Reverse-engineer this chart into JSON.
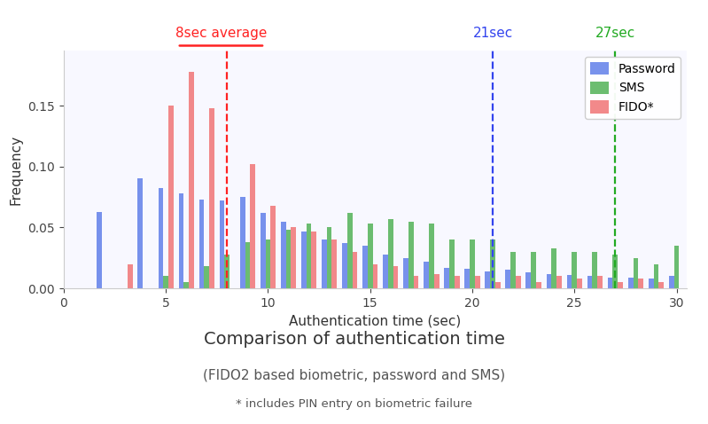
{
  "title": "Comparison of authentication time",
  "subtitle1": "(FIDO2 based biometric, password and SMS)",
  "subtitle2": "* includes PIN entry on biometric failure",
  "xlabel": "Authentication time (sec)",
  "ylabel": "Frequency",
  "xlim": [
    1.5,
    30.5
  ],
  "ylim": [
    0,
    0.195
  ],
  "yticks": [
    0.0,
    0.05,
    0.1,
    0.15
  ],
  "xticks": [
    0,
    5,
    10,
    15,
    20,
    25,
    30
  ],
  "bar_width": 0.25,
  "colors": {
    "password": "#5b7be8",
    "sms": "#4caf50",
    "fido": "#f07070"
  },
  "vline_fido": {
    "x": 8,
    "color": "#ff2222",
    "label": "8sec average"
  },
  "vline_password": {
    "x": 21,
    "color": "#3344ee",
    "label": "21sec"
  },
  "vline_sms": {
    "x": 27,
    "color": "#22aa22",
    "label": "27sec"
  },
  "bins": [
    2,
    3,
    4,
    5,
    6,
    7,
    8,
    9,
    10,
    11,
    12,
    13,
    14,
    15,
    16,
    17,
    18,
    19,
    20,
    21,
    22,
    23,
    24,
    25,
    26,
    27,
    28,
    29,
    30
  ],
  "password_freq": [
    0.063,
    0.0,
    0.09,
    0.082,
    0.078,
    0.073,
    0.072,
    0.075,
    0.062,
    0.055,
    0.047,
    0.04,
    0.037,
    0.035,
    0.028,
    0.025,
    0.022,
    0.017,
    0.016,
    0.014,
    0.015,
    0.013,
    0.012,
    0.011,
    0.01,
    0.009,
    0.009,
    0.008,
    0.01
  ],
  "sms_freq": [
    0.0,
    0.0,
    0.0,
    0.01,
    0.005,
    0.018,
    0.028,
    0.038,
    0.04,
    0.048,
    0.053,
    0.05,
    0.062,
    0.053,
    0.057,
    0.055,
    0.053,
    0.04,
    0.04,
    0.04,
    0.03,
    0.03,
    0.033,
    0.03,
    0.03,
    0.028,
    0.025,
    0.02,
    0.035
  ],
  "fido_freq": [
    0.0,
    0.02,
    0.0,
    0.15,
    0.178,
    0.148,
    0.0,
    0.102,
    0.068,
    0.05,
    0.047,
    0.04,
    0.03,
    0.02,
    0.018,
    0.01,
    0.012,
    0.01,
    0.01,
    0.005,
    0.01,
    0.005,
    0.01,
    0.008,
    0.01,
    0.005,
    0.008,
    0.005,
    0.0
  ],
  "bg_color": "#f8f8ff",
  "title_color": "#333333",
  "subtitle_color": "#555555"
}
